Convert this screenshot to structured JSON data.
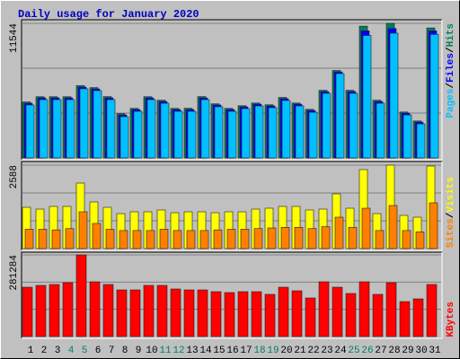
{
  "chart_data": [
    {
      "type": "bar",
      "title": "Daily usage for January 2020",
      "ylim": [
        0,
        11544
      ],
      "yticks": [
        11544
      ],
      "legend_separator": "/",
      "series": [
        {
          "name": "Hits",
          "color": "#00805C",
          "values": [
            4800,
            5250,
            5250,
            5250,
            6200,
            6030,
            5260,
            3800,
            4250,
            5250,
            4950,
            4250,
            4260,
            5260,
            4640,
            4250,
            4480,
            4710,
            4560,
            5190,
            4710,
            4170,
            5800,
            7500,
            5800,
            11300,
            4950,
            11544,
            3940,
            3170,
            11150
          ]
        },
        {
          "name": "Files",
          "color": "#0000FF",
          "values": [
            4690,
            5150,
            5150,
            5150,
            6080,
            5920,
            5150,
            3690,
            4150,
            5150,
            4840,
            4150,
            4150,
            5150,
            4540,
            4150,
            4380,
            4610,
            4460,
            5080,
            4610,
            4070,
            5690,
            7380,
            5690,
            10900,
            4840,
            11100,
            3840,
            3070,
            10900
          ]
        },
        {
          "name": "Pages",
          "color": "#00C0FF",
          "values": [
            4540,
            5000,
            5000,
            5000,
            5930,
            5770,
            5000,
            3540,
            4000,
            5000,
            4690,
            4000,
            4000,
            5000,
            4390,
            4000,
            4230,
            4460,
            4310,
            4930,
            4460,
            3920,
            5540,
            7230,
            5540,
            10500,
            4690,
            10700,
            3690,
            2920,
            10600
          ]
        }
      ]
    },
    {
      "type": "bar",
      "ylim": [
        0,
        2588
      ],
      "yticks": [
        2588
      ],
      "legend_separator": "/",
      "series": [
        {
          "name": "Visits",
          "color": "#FFFF00",
          "values": [
            1280,
            1224,
            1308,
            1308,
            2031,
            1447,
            1280,
            1085,
            1141,
            1141,
            1197,
            1113,
            1141,
            1141,
            1113,
            1141,
            1141,
            1224,
            1252,
            1308,
            1308,
            1197,
            1224,
            1698,
            1252,
            2449,
            1085,
            2588,
            1030,
            974,
            2560
          ]
        },
        {
          "name": "Sites",
          "color": "#FF8000",
          "values": [
            600,
            600,
            580,
            620,
            1141,
            780,
            600,
            560,
            560,
            560,
            600,
            560,
            560,
            560,
            580,
            600,
            600,
            620,
            640,
            660,
            660,
            620,
            680,
            974,
            660,
            1252,
            560,
            1336,
            560,
            520,
            1419
          ]
        }
      ]
    },
    {
      "type": "bar",
      "ylim": [
        0,
        281284
      ],
      "yticks": [
        281284
      ],
      "categories": [
        "1",
        "2",
        "3",
        "4",
        "5",
        "6",
        "7",
        "8",
        "9",
        "10",
        "11",
        "12",
        "13",
        "14",
        "15",
        "16",
        "17",
        "18",
        "19",
        "20",
        "21",
        "22",
        "23",
        "24",
        "25",
        "26",
        "27",
        "28",
        "29",
        "30",
        "31"
      ],
      "category_colors": [
        "#000000",
        "#000000",
        "#000000",
        "#00805C",
        "#00805C",
        "#000000",
        "#000000",
        "#000000",
        "#000000",
        "#000000",
        "#00805C",
        "#00805C",
        "#000000",
        "#000000",
        "#000000",
        "#000000",
        "#000000",
        "#00805C",
        "#00805C",
        "#000000",
        "#000000",
        "#000000",
        "#000000",
        "#000000",
        "#00805C",
        "#00805C",
        "#000000",
        "#000000",
        "#000000",
        "#000000",
        "#000000"
      ],
      "series": [
        {
          "name": "KBytes",
          "color": "#FF0000",
          "values": [
            170000,
            176200,
            179300,
            185500,
            281284,
            188600,
            179300,
            160700,
            160700,
            176200,
            176200,
            163800,
            160700,
            160700,
            154600,
            151500,
            154600,
            154600,
            145300,
            170000,
            157600,
            132900,
            188600,
            170000,
            148400,
            188600,
            145300,
            185500,
            120500,
            129800,
            179300
          ]
        }
      ]
    }
  ]
}
